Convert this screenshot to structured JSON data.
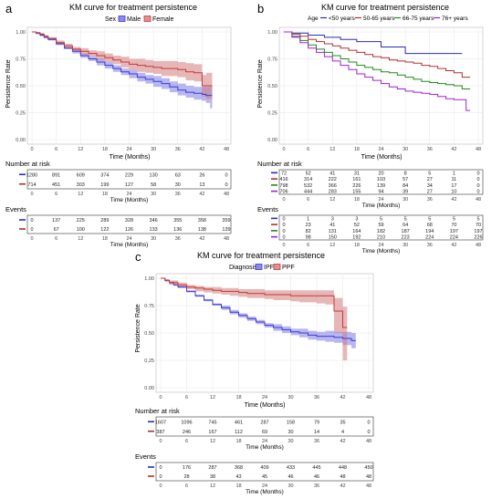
{
  "panels": [
    {
      "letter": "a",
      "title": "KM curve for treatment persistence",
      "legend_title": "Sex",
      "legend_entries": [
        "Male",
        "Female"
      ],
      "legend_style": "box",
      "ylabel": "Persistence Rate",
      "xlabel": "Time (Months)",
      "y_ticks": [
        "0.00",
        "0.25",
        "0.50",
        "0.75",
        "1.00"
      ],
      "x_ticks": [
        "0",
        "6",
        "12",
        "18",
        "24",
        "30",
        "36",
        "42",
        "48"
      ],
      "risk_title": "Number at risk",
      "risk_rows": [
        [
          "1280",
          "891",
          "609",
          "374",
          "229",
          "130",
          "63",
          "26",
          "0"
        ],
        [
          "714",
          "451",
          "303",
          "199",
          "127",
          "58",
          "30",
          "13",
          "0"
        ]
      ],
      "events_title": "Events",
      "events_rows": [
        [
          "0",
          "137",
          "225",
          "289",
          "328",
          "346",
          "355",
          "358",
          "359"
        ],
        [
          "0",
          "67",
          "100",
          "122",
          "126",
          "133",
          "136",
          "138",
          "139"
        ]
      ]
    },
    {
      "letter": "b",
      "title": "KM curve for treatment persistence",
      "legend_title": "Age",
      "legend_entries": [
        "<50 years",
        "50-65 years",
        "66-75 years",
        "76+ years"
      ],
      "legend_style": "line",
      "ylabel": "Persistence Rate",
      "xlabel": "Time (Months)",
      "y_ticks": [
        "0.00",
        "0.25",
        "0.50",
        "0.75",
        "1.00"
      ],
      "x_ticks": [
        "0",
        "6",
        "12",
        "18",
        "24",
        "30",
        "36",
        "42",
        "48"
      ],
      "risk_title": "Number at risk",
      "risk_rows": [
        [
          "72",
          "52",
          "41",
          "31",
          "20",
          "8",
          "5",
          "1",
          "0"
        ],
        [
          "416",
          "314",
          "222",
          "161",
          "103",
          "57",
          "27",
          "11",
          "0"
        ],
        [
          "798",
          "532",
          "366",
          "226",
          "139",
          "84",
          "34",
          "17",
          "0"
        ],
        [
          "706",
          "444",
          "283",
          "155",
          "94",
          "39",
          "27",
          "10",
          "0"
        ]
      ],
      "events_title": "Events",
      "events_rows": [
        [
          "0",
          "1",
          "3",
          "3",
          "5",
          "5",
          "5",
          "5",
          "5"
        ],
        [
          "0",
          "23",
          "41",
          "52",
          "59",
          "64",
          "68",
          "70",
          "70"
        ],
        [
          "0",
          "82",
          "131",
          "164",
          "182",
          "187",
          "194",
          "197",
          "197"
        ],
        [
          "0",
          "98",
          "150",
          "192",
          "210",
          "223",
          "224",
          "224",
          "226"
        ]
      ]
    },
    {
      "letter": "c",
      "title": "KM curve for treatment persistence",
      "legend_title": "Diagnosis",
      "legend_entries": [
        "IPF",
        "PPF"
      ],
      "legend_style": "box",
      "ylabel": "Persistence Rate",
      "xlabel": "Time (Months)",
      "y_ticks": [
        "0.00",
        "0.25",
        "0.50",
        "0.75",
        "1.00"
      ],
      "x_ticks": [
        "0",
        "6",
        "12",
        "18",
        "24",
        "30",
        "36",
        "42",
        "48"
      ],
      "risk_title": "Number at risk",
      "risk_rows": [
        [
          "1607",
          "1096",
          "745",
          "461",
          "287",
          "158",
          "79",
          "35",
          "0"
        ],
        [
          "387",
          "246",
          "167",
          "112",
          "69",
          "30",
          "14",
          "4",
          "0"
        ]
      ],
      "events_title": "Events",
      "events_rows": [
        [
          "0",
          "176",
          "287",
          "368",
          "409",
          "433",
          "445",
          "448",
          "450"
        ],
        [
          "0",
          "28",
          "38",
          "43",
          "45",
          "46",
          "46",
          "48",
          "48"
        ]
      ]
    }
  ],
  "chart_data": [
    {
      "type": "line",
      "panel": "a",
      "xlim": [
        0,
        48
      ],
      "ylim": [
        0,
        1
      ],
      "series": [
        {
          "name": "Male",
          "color": "#3b3bd6",
          "x": [
            0,
            1,
            2,
            3,
            4,
            6,
            8,
            10,
            12,
            14,
            16,
            18,
            20,
            22,
            24,
            26,
            28,
            30,
            32,
            34,
            36,
            38,
            40,
            42,
            43,
            44,
            44.5
          ],
          "y": [
            1.0,
            0.99,
            0.97,
            0.95,
            0.93,
            0.89,
            0.85,
            0.82,
            0.78,
            0.75,
            0.72,
            0.69,
            0.66,
            0.63,
            0.61,
            0.58,
            0.56,
            0.54,
            0.52,
            0.49,
            0.46,
            0.44,
            0.43,
            0.42,
            0.41,
            0.41,
            0.41
          ],
          "lower": [
            1.0,
            0.98,
            0.96,
            0.94,
            0.92,
            0.88,
            0.84,
            0.8,
            0.76,
            0.73,
            0.69,
            0.66,
            0.63,
            0.6,
            0.57,
            0.54,
            0.52,
            0.49,
            0.47,
            0.44,
            0.41,
            0.39,
            0.37,
            0.36,
            0.34,
            0.29,
            0.29
          ],
          "upper": [
            1.0,
            1.0,
            0.98,
            0.96,
            0.94,
            0.9,
            0.86,
            0.84,
            0.8,
            0.77,
            0.75,
            0.72,
            0.69,
            0.66,
            0.65,
            0.62,
            0.6,
            0.59,
            0.57,
            0.54,
            0.52,
            0.5,
            0.49,
            0.49,
            0.49,
            0.5,
            0.5
          ]
        },
        {
          "name": "Female",
          "color": "#c03a3a",
          "x": [
            0,
            1,
            2,
            3,
            4,
            6,
            8,
            10,
            12,
            14,
            16,
            18,
            20,
            22,
            24,
            26,
            28,
            30,
            32,
            34,
            36,
            38,
            40,
            42,
            43,
            44,
            44.5
          ],
          "y": [
            1.0,
            0.99,
            0.98,
            0.96,
            0.94,
            0.9,
            0.87,
            0.84,
            0.82,
            0.8,
            0.78,
            0.76,
            0.74,
            0.72,
            0.7,
            0.69,
            0.68,
            0.67,
            0.66,
            0.66,
            0.65,
            0.63,
            0.62,
            0.5,
            0.5,
            0.5,
            0.5
          ],
          "lower": [
            1.0,
            0.98,
            0.97,
            0.95,
            0.93,
            0.88,
            0.85,
            0.82,
            0.79,
            0.77,
            0.74,
            0.72,
            0.7,
            0.67,
            0.65,
            0.63,
            0.62,
            0.61,
            0.59,
            0.59,
            0.58,
            0.55,
            0.54,
            0.4,
            0.38,
            0.38,
            0.38
          ],
          "upper": [
            1.0,
            1.0,
            0.99,
            0.97,
            0.95,
            0.92,
            0.89,
            0.86,
            0.85,
            0.83,
            0.82,
            0.8,
            0.78,
            0.77,
            0.75,
            0.75,
            0.74,
            0.73,
            0.73,
            0.73,
            0.72,
            0.71,
            0.7,
            0.6,
            0.62,
            0.62,
            0.62
          ]
        }
      ]
    },
    {
      "type": "line",
      "panel": "b",
      "xlim": [
        0,
        48
      ],
      "ylim": [
        0,
        1
      ],
      "series": [
        {
          "name": "<50 years",
          "color": "#2b2bb8",
          "x": [
            0,
            2,
            6,
            10,
            14,
            18,
            24,
            30,
            36,
            42,
            44
          ],
          "y": [
            1.0,
            0.99,
            0.97,
            0.95,
            0.93,
            0.91,
            0.86,
            0.8,
            0.8,
            0.8,
            0.8
          ]
        },
        {
          "name": "50-65 years",
          "color": "#b03030",
          "x": [
            0,
            2,
            4,
            6,
            8,
            10,
            12,
            14,
            16,
            18,
            20,
            22,
            24,
            26,
            28,
            30,
            32,
            34,
            36,
            38,
            40,
            42,
            44,
            46
          ],
          "y": [
            1.0,
            0.98,
            0.96,
            0.93,
            0.91,
            0.89,
            0.87,
            0.85,
            0.83,
            0.81,
            0.79,
            0.77,
            0.76,
            0.74,
            0.73,
            0.72,
            0.71,
            0.69,
            0.68,
            0.66,
            0.64,
            0.62,
            0.58,
            0.58
          ]
        },
        {
          "name": "66-75 years",
          "color": "#1f8a1f",
          "x": [
            0,
            2,
            4,
            6,
            8,
            10,
            12,
            14,
            16,
            18,
            20,
            22,
            24,
            26,
            28,
            30,
            32,
            34,
            36,
            38,
            40,
            42,
            44,
            46
          ],
          "y": [
            1.0,
            0.96,
            0.92,
            0.88,
            0.84,
            0.81,
            0.78,
            0.75,
            0.72,
            0.69,
            0.67,
            0.65,
            0.63,
            0.62,
            0.6,
            0.58,
            0.56,
            0.54,
            0.53,
            0.52,
            0.51,
            0.5,
            0.47,
            0.47
          ]
        },
        {
          "name": "76+ years",
          "color": "#a020d8",
          "x": [
            0,
            2,
            4,
            6,
            8,
            10,
            12,
            14,
            16,
            18,
            20,
            22,
            24,
            26,
            28,
            30,
            32,
            34,
            36,
            38,
            40,
            42,
            44,
            45,
            46
          ],
          "y": [
            1.0,
            0.95,
            0.9,
            0.85,
            0.81,
            0.77,
            0.73,
            0.69,
            0.65,
            0.61,
            0.58,
            0.55,
            0.52,
            0.49,
            0.47,
            0.45,
            0.44,
            0.43,
            0.42,
            0.4,
            0.38,
            0.37,
            0.37,
            0.27,
            0.27
          ]
        }
      ]
    },
    {
      "type": "line",
      "panel": "c",
      "xlim": [
        0,
        48
      ],
      "ylim": [
        0,
        1
      ],
      "series": [
        {
          "name": "IPF",
          "color": "#3b3bd6",
          "x": [
            0,
            1,
            2,
            3,
            4,
            6,
            8,
            10,
            12,
            14,
            16,
            18,
            20,
            22,
            24,
            26,
            28,
            30,
            32,
            34,
            36,
            38,
            40,
            42,
            44,
            45
          ],
          "y": [
            1.0,
            0.98,
            0.96,
            0.94,
            0.92,
            0.88,
            0.84,
            0.8,
            0.76,
            0.73,
            0.69,
            0.66,
            0.63,
            0.6,
            0.57,
            0.55,
            0.53,
            0.51,
            0.5,
            0.48,
            0.47,
            0.47,
            0.46,
            0.45,
            0.43,
            0.43
          ],
          "lower": [
            1.0,
            0.97,
            0.95,
            0.93,
            0.91,
            0.87,
            0.83,
            0.79,
            0.75,
            0.71,
            0.67,
            0.64,
            0.61,
            0.58,
            0.55,
            0.52,
            0.5,
            0.48,
            0.46,
            0.44,
            0.43,
            0.42,
            0.41,
            0.39,
            0.36,
            0.36
          ],
          "upper": [
            1.0,
            0.99,
            0.97,
            0.95,
            0.93,
            0.89,
            0.85,
            0.81,
            0.77,
            0.75,
            0.71,
            0.68,
            0.65,
            0.62,
            0.59,
            0.58,
            0.56,
            0.54,
            0.54,
            0.52,
            0.51,
            0.52,
            0.51,
            0.51,
            0.5,
            0.5
          ]
        },
        {
          "name": "PPF",
          "color": "#c03a3a",
          "x": [
            0,
            1,
            2,
            4,
            6,
            8,
            10,
            12,
            14,
            16,
            18,
            20,
            22,
            24,
            26,
            28,
            30,
            32,
            34,
            36,
            38,
            40,
            42,
            43
          ],
          "y": [
            1.0,
            0.98,
            0.96,
            0.94,
            0.92,
            0.91,
            0.9,
            0.89,
            0.88,
            0.88,
            0.87,
            0.86,
            0.86,
            0.85,
            0.85,
            0.85,
            0.84,
            0.84,
            0.84,
            0.84,
            0.84,
            0.7,
            0.55,
            0.55
          ]
        },
        {
          "name": "PPF band",
          "color": "#c03a3a",
          "x": [
            0,
            1,
            2,
            4,
            6,
            8,
            10,
            12,
            14,
            16,
            18,
            20,
            22,
            24,
            26,
            28,
            30,
            32,
            34,
            36,
            38,
            40,
            42,
            43
          ],
          "lower": [
            1.0,
            0.97,
            0.94,
            0.92,
            0.9,
            0.88,
            0.87,
            0.86,
            0.85,
            0.84,
            0.83,
            0.82,
            0.82,
            0.81,
            0.8,
            0.8,
            0.79,
            0.78,
            0.78,
            0.77,
            0.76,
            0.5,
            0.25,
            0.25
          ],
          "upper": [
            1.0,
            0.99,
            0.98,
            0.96,
            0.94,
            0.93,
            0.92,
            0.92,
            0.91,
            0.91,
            0.9,
            0.9,
            0.9,
            0.89,
            0.89,
            0.89,
            0.89,
            0.89,
            0.89,
            0.89,
            0.89,
            0.82,
            0.74,
            0.74
          ]
        }
      ]
    }
  ],
  "colors": {
    "panel_bg": "#ffffff",
    "grid": "#e6e6e6",
    "frame": "#333333",
    "a_risk_rows": [
      "#2b2bb8",
      "#b03030"
    ],
    "b_risk_rows": [
      "#2b2bb8",
      "#b03030",
      "#1f8a1f",
      "#a020d8"
    ],
    "c_risk_rows": [
      "#2b2bb8",
      "#b03030"
    ]
  }
}
